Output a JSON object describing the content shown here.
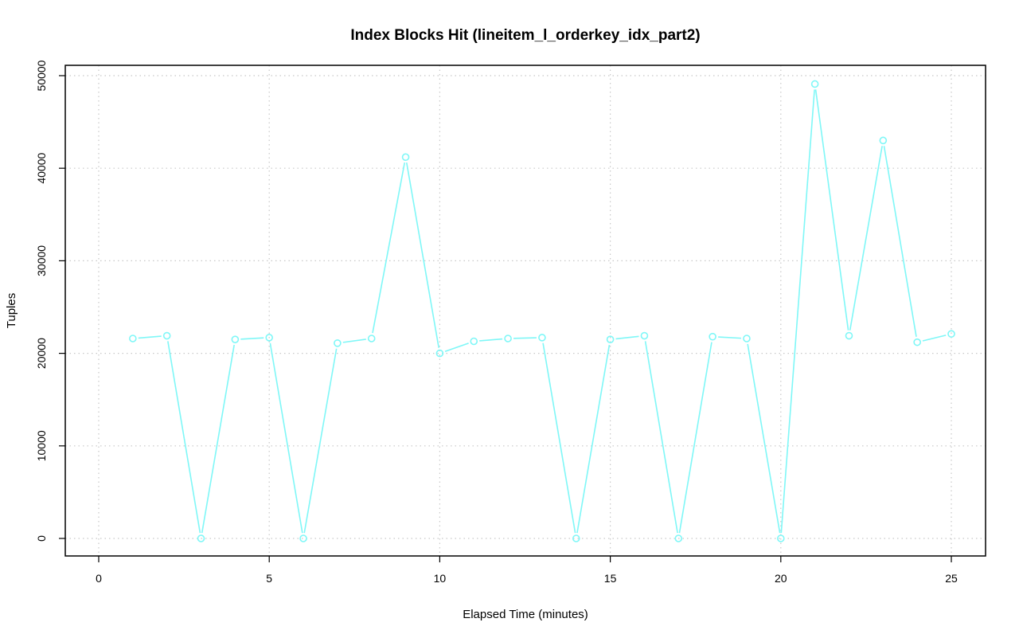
{
  "chart_data": {
    "type": "line",
    "title": "Index Blocks Hit (lineitem_l_orderkey_idx_part2)",
    "xlabel": "Elapsed Time (minutes)",
    "ylabel": "Tuples",
    "xlim": [
      0,
      25
    ],
    "ylim": [
      0,
      50000
    ],
    "xticks": [
      0,
      5,
      10,
      15,
      20,
      25
    ],
    "yticks": [
      0,
      10000,
      20000,
      30000,
      40000,
      50000
    ],
    "xtick_labels": [
      "0",
      "5",
      "10",
      "15",
      "20",
      "25"
    ],
    "ytick_labels": [
      "0",
      "10000",
      "20000",
      "30000",
      "40000",
      "50000"
    ],
    "grid": true,
    "series": [
      {
        "color": "#7ff7f7",
        "marker": "open-circle",
        "x": [
          1,
          2,
          3,
          4,
          5,
          6,
          7,
          8,
          9,
          10,
          11,
          12,
          13,
          14,
          15,
          16,
          17,
          18,
          19,
          20,
          21,
          22,
          23,
          24,
          25
        ],
        "values": [
          21600,
          21900,
          0,
          21500,
          21700,
          0,
          21100,
          21600,
          41200,
          20000,
          21300,
          21600,
          21700,
          0,
          21500,
          21900,
          0,
          21800,
          21600,
          0,
          49100,
          21900,
          43000,
          21200,
          22100
        ]
      }
    ]
  }
}
